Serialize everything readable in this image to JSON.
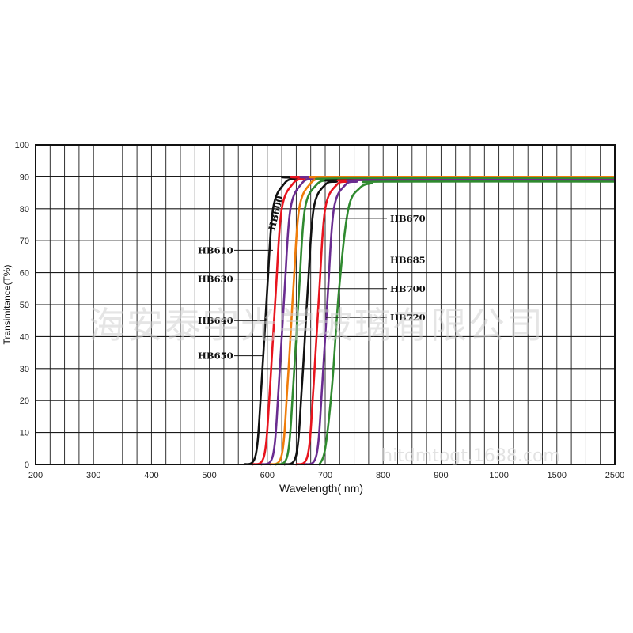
{
  "chart_data": {
    "type": "line",
    "xlabel": "Wavelength( nm)",
    "ylabel": "Transimitance(T%)",
    "x_ticks": [
      "200",
      "300",
      "400",
      "500",
      "600",
      "700",
      "800",
      "900",
      "1000",
      "1500",
      "2500"
    ],
    "y_ticks": [
      "0",
      "10",
      "20",
      "30",
      "40",
      "50",
      "60",
      "70",
      "80",
      "90",
      "100"
    ],
    "ylim": [
      0,
      100
    ],
    "grid": true,
    "series": [
      {
        "name": "HB600",
        "color": "#111111",
        "x": [
          560,
          580,
          590,
          600,
          610,
          630,
          650,
          670,
          2500
        ],
        "y": [
          0,
          3,
          25,
          55,
          80,
          88,
          89.5,
          90,
          90
        ]
      },
      {
        "name": "HB610",
        "color": "#e8141e",
        "x": [
          575,
          595,
          605,
          615,
          625,
          645,
          665,
          685,
          2500
        ],
        "y": [
          0,
          3,
          25,
          55,
          80,
          88,
          89.5,
          90,
          90
        ]
      },
      {
        "name": "HB630",
        "color": "#6a2c90",
        "x": [
          590,
          610,
          620,
          630,
          640,
          660,
          680,
          700,
          2500
        ],
        "y": [
          0,
          3,
          25,
          55,
          80,
          88,
          89.5,
          90,
          90
        ]
      },
      {
        "name": "HB640",
        "color": "#f07d0a",
        "x": [
          605,
          625,
          635,
          645,
          655,
          675,
          695,
          715,
          2500
        ],
        "y": [
          0,
          3,
          25,
          55,
          80,
          88,
          89.5,
          90,
          90
        ]
      },
      {
        "name": "HB650",
        "color": "#2f8a2f",
        "x": [
          615,
          635,
          645,
          655,
          665,
          685,
          705,
          725,
          2500
        ],
        "y": [
          0,
          3,
          25,
          55,
          80,
          87.5,
          89,
          89.5,
          89.5
        ]
      },
      {
        "name": "HB670",
        "color": "#111111",
        "x": [
          630,
          650,
          660,
          670,
          680,
          700,
          720,
          740,
          2500
        ],
        "y": [
          0,
          3,
          25,
          55,
          80,
          87.5,
          88.5,
          89,
          89
        ]
      },
      {
        "name": "HB685",
        "color": "#e8141e",
        "x": [
          650,
          670,
          680,
          690,
          700,
          720,
          740,
          760,
          2500
        ],
        "y": [
          0,
          3,
          25,
          55,
          80,
          87.5,
          88.5,
          89,
          89
        ]
      },
      {
        "name": "HB700",
        "color": "#6a2c90",
        "x": [
          665,
          685,
          695,
          705,
          715,
          735,
          755,
          775,
          2500
        ],
        "y": [
          0,
          3,
          25,
          55,
          80,
          87.5,
          88.5,
          89,
          89
        ]
      },
      {
        "name": "HB720",
        "color": "#2f8a2f",
        "x": [
          690,
          700,
          712,
          724,
          740,
          760,
          780,
          800,
          2500
        ],
        "y": [
          0,
          5,
          25,
          55,
          80,
          86.5,
          88,
          88.5,
          88.5
        ]
      }
    ],
    "annotations": [
      "HB600",
      "HB610",
      "HB630",
      "HB640",
      "HB650",
      "HB670",
      "HB685",
      "HB700",
      "HB720"
    ]
  },
  "watermark": {
    "text": "海安泰宇光学玻璃有限公司",
    "url": "hitdmtogt.1688.com"
  }
}
